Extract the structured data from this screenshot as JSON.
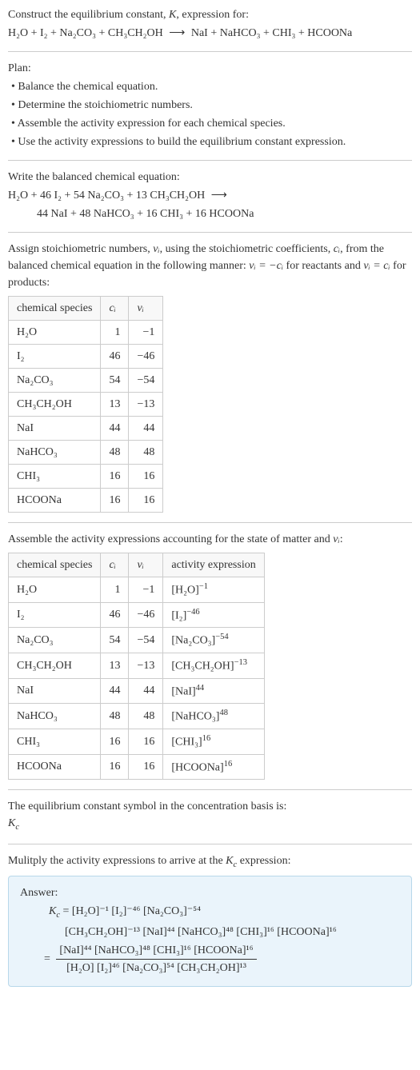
{
  "intro": {
    "line1_prefix": "Construct the equilibrium constant, ",
    "K": "K",
    "line1_suffix": ", expression for:",
    "eq_lhs": "H₂O + I₂ + Na₂CO₃ + CH₃CH₂OH",
    "arrow": "⟶",
    "eq_rhs": "NaI + NaHCO₃ + CHI₃ + HCOONa"
  },
  "plan": {
    "title": "Plan:",
    "items": [
      "• Balance the chemical equation.",
      "• Determine the stoichiometric numbers.",
      "• Assemble the activity expression for each chemical species.",
      "• Use the activity expressions to build the equilibrium constant expression."
    ]
  },
  "balanced": {
    "title": "Write the balanced chemical equation:",
    "lhs": "H₂O + 46 I₂ + 54 Na₂CO₃ + 13 CH₃CH₂OH",
    "arrow": "⟶",
    "rhs": "44 NaI + 48 NaHCO₃ + 16 CHI₃ + 16 HCOONa"
  },
  "assign": {
    "text_a": "Assign stoichiometric numbers, ",
    "nu_i": "νᵢ",
    "text_b": ", using the stoichiometric coefficients, ",
    "c_i": "cᵢ",
    "text_c": ", from the balanced chemical equation in the following manner: ",
    "rel1": "νᵢ = −cᵢ",
    "text_d": " for reactants and ",
    "rel2": "νᵢ = cᵢ",
    "text_e": " for products:"
  },
  "table1": {
    "headers": [
      "chemical species",
      "cᵢ",
      "νᵢ"
    ],
    "rows": [
      [
        "H₂O",
        "1",
        "−1"
      ],
      [
        "I₂",
        "46",
        "−46"
      ],
      [
        "Na₂CO₃",
        "54",
        "−54"
      ],
      [
        "CH₃CH₂OH",
        "13",
        "−13"
      ],
      [
        "NaI",
        "44",
        "44"
      ],
      [
        "NaHCO₃",
        "48",
        "48"
      ],
      [
        "CHI₃",
        "16",
        "16"
      ],
      [
        "HCOONa",
        "16",
        "16"
      ]
    ]
  },
  "assemble": {
    "text_a": "Assemble the activity expressions accounting for the state of matter and ",
    "nu_i": "νᵢ",
    "text_b": ":"
  },
  "table2": {
    "headers": [
      "chemical species",
      "cᵢ",
      "νᵢ",
      "activity expression"
    ],
    "rows": [
      {
        "s": "H₂O",
        "c": "1",
        "v": "−1",
        "base": "[H₂O]",
        "exp": "−1"
      },
      {
        "s": "I₂",
        "c": "46",
        "v": "−46",
        "base": "[I₂]",
        "exp": "−46"
      },
      {
        "s": "Na₂CO₃",
        "c": "54",
        "v": "−54",
        "base": "[Na₂CO₃]",
        "exp": "−54"
      },
      {
        "s": "CH₃CH₂OH",
        "c": "13",
        "v": "−13",
        "base": "[CH₃CH₂OH]",
        "exp": "−13"
      },
      {
        "s": "NaI",
        "c": "44",
        "v": "44",
        "base": "[NaI]",
        "exp": "44"
      },
      {
        "s": "NaHCO₃",
        "c": "48",
        "v": "48",
        "base": "[NaHCO₃]",
        "exp": "48"
      },
      {
        "s": "CHI₃",
        "c": "16",
        "v": "16",
        "base": "[CHI₃]",
        "exp": "16"
      },
      {
        "s": "HCOONa",
        "c": "16",
        "v": "16",
        "base": "[HCOONa]",
        "exp": "16"
      }
    ]
  },
  "symbol": {
    "text": "The equilibrium constant symbol in the concentration basis is:",
    "kc": "K",
    "kc_sub": "c"
  },
  "multiply": {
    "text_a": "Mulitply the activity expressions to arrive at the ",
    "kc": "K",
    "kc_sub": "c",
    "text_b": " expression:"
  },
  "answer": {
    "label": "Answer:",
    "kc": "K",
    "kc_sub": "c",
    "line1": " = [H₂O]⁻¹ [I₂]⁻⁴⁶ [Na₂CO₃]⁻⁵⁴",
    "line2": "[CH₃CH₂OH]⁻¹³ [NaI]⁴⁴ [NaHCO₃]⁴⁸ [CHI₃]¹⁶ [HCOONa]¹⁶",
    "eq_sign": " = ",
    "frac_num": "[NaI]⁴⁴ [NaHCO₃]⁴⁸ [CHI₃]¹⁶ [HCOONa]¹⁶",
    "frac_den": "[H₂O] [I₂]⁴⁶ [Na₂CO₃]⁵⁴ [CH₃CH₂OH]¹³"
  },
  "colors": {
    "text": "#333333",
    "border": "#cccccc",
    "answer_bg": "#eaf4fb",
    "answer_border": "#b8d8ea"
  }
}
